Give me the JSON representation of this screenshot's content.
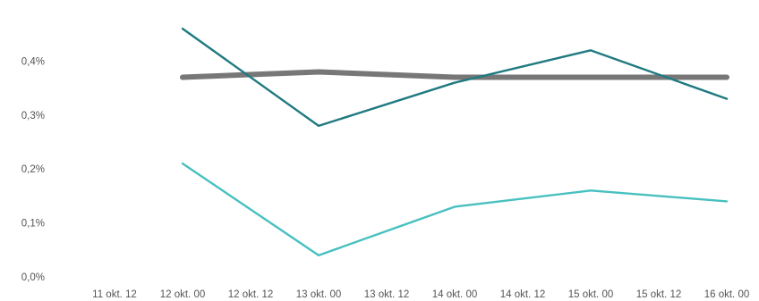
{
  "chart_data": {
    "type": "line",
    "title": "",
    "xlabel": "",
    "ylabel": "",
    "x_ticks": [
      "11 okt. 12",
      "12 okt. 00",
      "12 okt. 12",
      "13 okt. 00",
      "13 okt. 12",
      "14 okt. 00",
      "14 okt. 12",
      "15 okt. 00",
      "15 okt. 12",
      "16 okt. 00"
    ],
    "y_ticks": [
      "0,0%",
      "0,1%",
      "0,2%",
      "0,3%",
      "0,4%"
    ],
    "ylim": [
      0,
      0.5
    ],
    "grid": false,
    "legend": "none",
    "series": [
      {
        "color": "#777777",
        "points": [
          {
            "x": "12 okt. 00",
            "y": 0.37
          },
          {
            "x": "13 okt. 00",
            "y": 0.38
          },
          {
            "x": "14 okt. 00",
            "y": 0.37
          },
          {
            "x": "15 okt. 00",
            "y": 0.37
          },
          {
            "x": "16 okt. 00",
            "y": 0.37
          }
        ]
      },
      {
        "color": "#1f7a80",
        "points": [
          {
            "x": "12 okt. 00",
            "y": 0.46
          },
          {
            "x": "13 okt. 00",
            "y": 0.28
          },
          {
            "x": "14 okt. 00",
            "y": 0.36
          },
          {
            "x": "15 okt. 00",
            "y": 0.42
          },
          {
            "x": "16 okt. 00",
            "y": 0.33
          }
        ]
      },
      {
        "color": "#48c0c0",
        "points": [
          {
            "x": "12 okt. 00",
            "y": 0.21
          },
          {
            "x": "13 okt. 00",
            "y": 0.04
          },
          {
            "x": "14 okt. 00",
            "y": 0.13
          },
          {
            "x": "15 okt. 00",
            "y": 0.16
          },
          {
            "x": "16 okt. 00",
            "y": 0.14
          }
        ]
      }
    ]
  }
}
